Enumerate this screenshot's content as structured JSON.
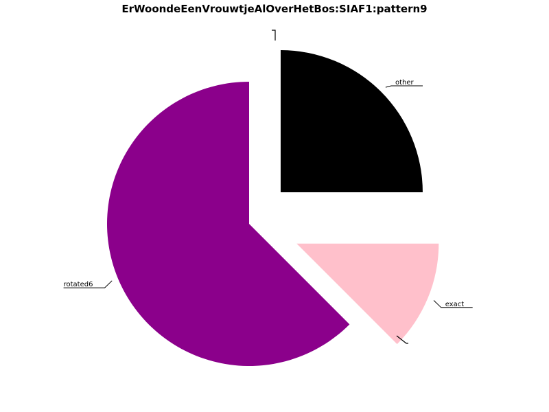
{
  "chart_data": {
    "type": "pie",
    "title": "ErWoondeEenVrouwtjeAlOverHetBos:SIAF1:pattern9",
    "slices": [
      {
        "label": "other",
        "value": 25.0,
        "color": "#000000"
      },
      {
        "label": "exact",
        "value": 12.5,
        "color": "#ffc0cb"
      },
      {
        "label": "rotated6",
        "value": 62.5,
        "color": "#8b008b"
      }
    ],
    "start_angle_deg": 90,
    "direction": "clockwise",
    "exploded": true,
    "legend": "none",
    "labels_position": "outside with leader lines"
  }
}
